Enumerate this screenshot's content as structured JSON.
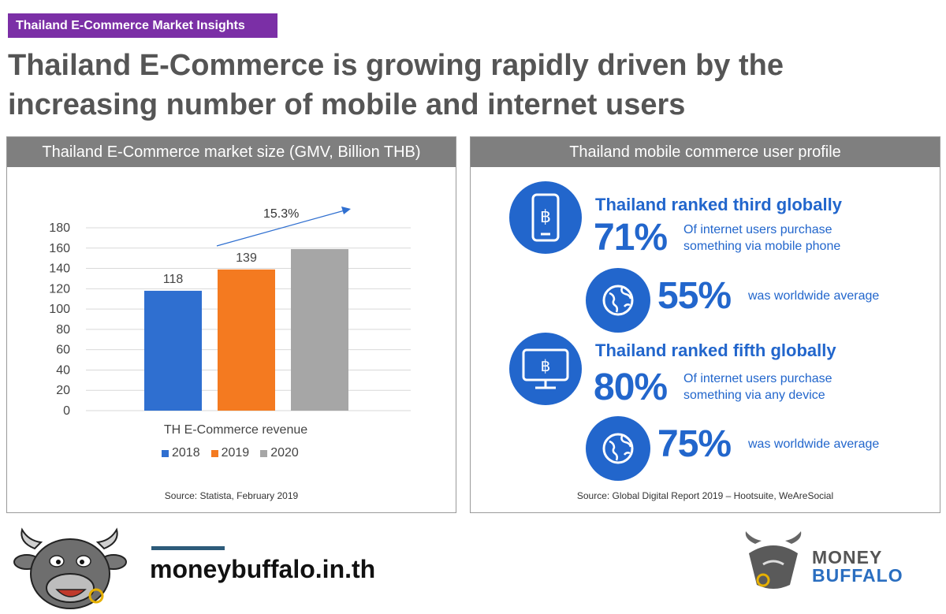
{
  "tag": "Thailand E-Commerce Market Insights",
  "headline": {
    "line1": "Thailand E-Commerce is growing rapidly driven by the",
    "line2": "increasing number of mobile and internet users"
  },
  "left_panel": {
    "header": "Thailand E-Commerce market size (GMV, Billion THB)",
    "source": "Source: Statista, February 2019"
  },
  "right_panel": {
    "header": "Thailand mobile commerce user profile",
    "source": "Source: Global Digital Report 2019 – Hootsuite, WeAreSocial",
    "blocks": [
      {
        "icon": "mobile-baht-icon",
        "title": "Thailand ranked third globally",
        "pct": "71%",
        "desc_line1": "Of internet users purchase",
        "desc_line2": "something via mobile phone",
        "world_pct": "55%",
        "world_label": "was worldwide average"
      },
      {
        "icon": "monitor-baht-icon",
        "title": "Thailand ranked fifth globally",
        "pct": "80%",
        "desc_line1": "Of internet users purchase",
        "desc_line2": "something via any device",
        "world_pct": "75%",
        "world_label": "was worldwide average"
      }
    ]
  },
  "brand": {
    "url": "moneybuffalo.in.th",
    "logo_line1": "MONEY",
    "logo_line2": "BUFFALO"
  },
  "colors": {
    "accent_purple": "#7b2fa6",
    "blue": "#2266cc",
    "bar_2018": "#2f6fd0",
    "bar_2019": "#f47a20",
    "bar_2020": "#a6a6a6"
  },
  "chart_data": {
    "type": "bar",
    "categories": [
      "TH E-Commerce revenue"
    ],
    "series": [
      {
        "name": "2018",
        "values": [
          118
        ],
        "label": "118",
        "color": "#2f6fd0"
      },
      {
        "name": "2019",
        "values": [
          139
        ],
        "label": "139",
        "color": "#f47a20"
      },
      {
        "name": "2020",
        "values": [
          159
        ],
        "label": "",
        "color": "#a6a6a6"
      }
    ],
    "xlabel": "TH E-Commerce revenue",
    "ylim": [
      0,
      180
    ],
    "yticks": [
      "0",
      "20",
      "40",
      "60",
      "80",
      "100",
      "120",
      "140",
      "160",
      "180"
    ],
    "grid": true,
    "legend_position": "bottom",
    "annotation": "15.3%"
  }
}
